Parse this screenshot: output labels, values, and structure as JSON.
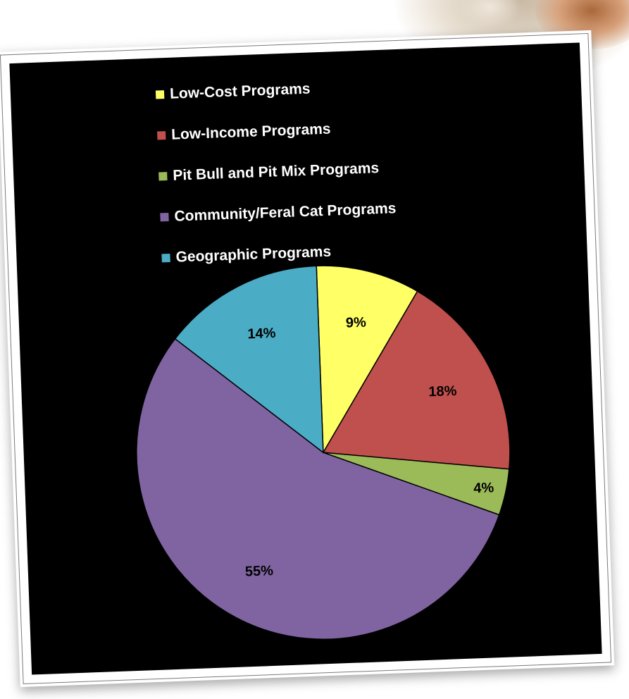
{
  "chart_data": {
    "type": "pie",
    "title": "",
    "legend_placement": "top",
    "slices": [
      {
        "label": "Low-Cost Programs",
        "value": 9,
        "display": "9%",
        "color": "#ffff66"
      },
      {
        "label": "Low-Income Programs",
        "value": 18,
        "display": "18%",
        "color": "#c0504d"
      },
      {
        "label": "Pit Bull and Pit Mix Programs",
        "value": 4,
        "display": "4%",
        "color": "#9bbb59"
      },
      {
        "label": "Community/Feral Cat Programs",
        "value": 55,
        "display": "55%",
        "color": "#8064a2"
      },
      {
        "label": "Geographic Programs",
        "value": 14,
        "display": "14%",
        "color": "#4bacc6"
      }
    ]
  },
  "colors": {
    "panel_background": "#000000",
    "legend_text": "#ffffff",
    "slice_outline": "#000000"
  }
}
